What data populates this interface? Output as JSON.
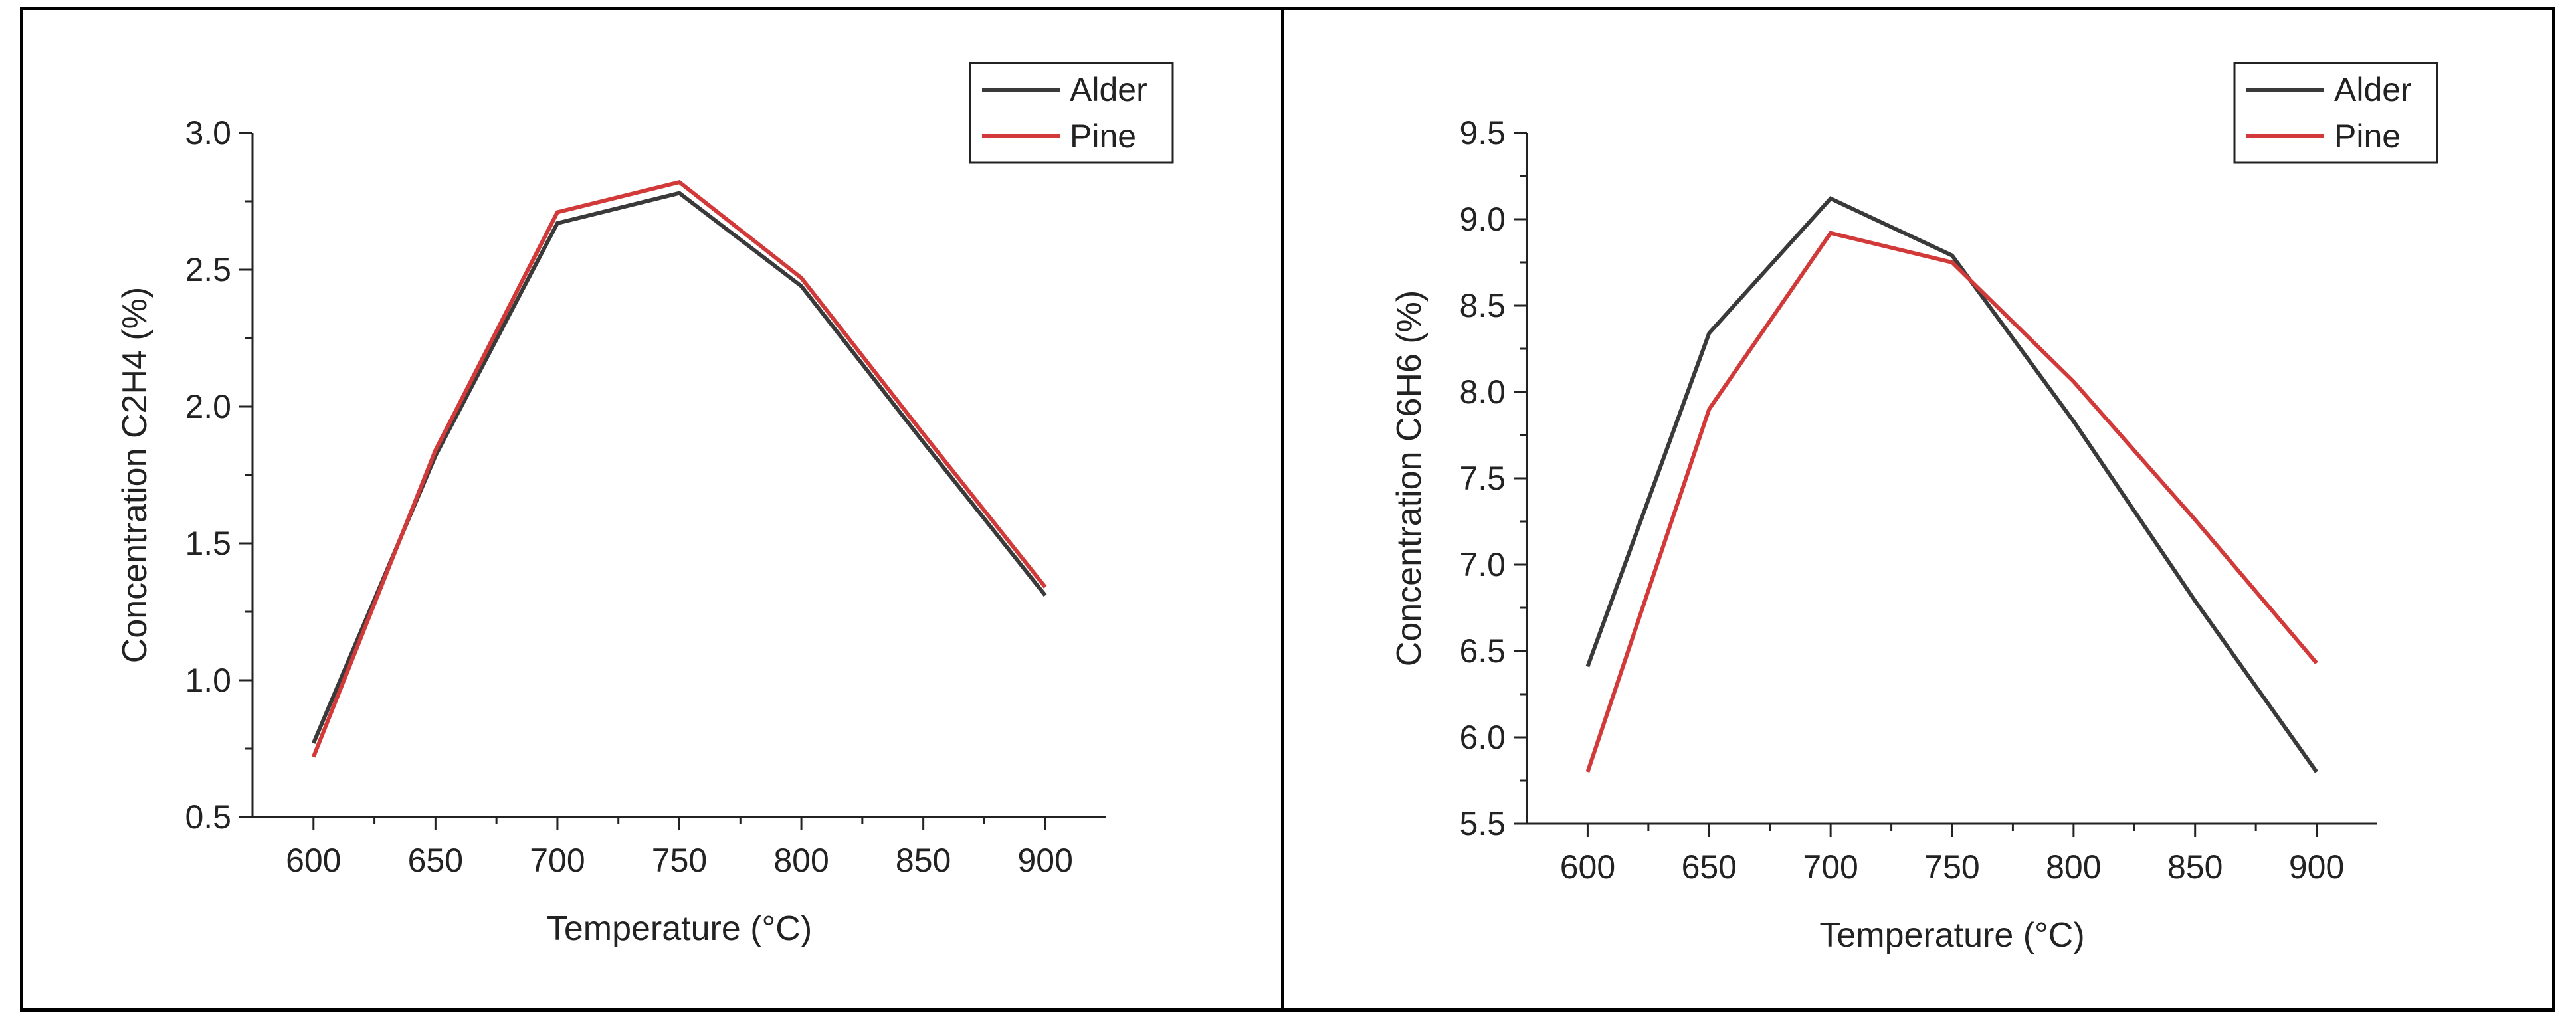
{
  "colors": {
    "alder": "#3a3a3a",
    "pine": "#d23a3a"
  },
  "chart_data": [
    {
      "type": "line",
      "title": "",
      "xlabel": "Temperature (°C)",
      "ylabel": "Concentration  C2H4 (%)",
      "x": [
        600,
        650,
        700,
        750,
        800,
        850,
        900
      ],
      "xlim": [
        575,
        925
      ],
      "ylim": [
        0.5,
        3.0
      ],
      "xticks": [
        "600",
        "650",
        "700",
        "750",
        "800",
        "850",
        "900"
      ],
      "yticks": [
        "0.5",
        "1.0",
        "1.5",
        "2.0",
        "2.5",
        "3.0"
      ],
      "legend": [
        "Alder",
        "Pine"
      ],
      "series": [
        {
          "name": "Alder",
          "values": [
            0.77,
            1.82,
            2.67,
            2.78,
            2.44,
            1.87,
            1.31
          ]
        },
        {
          "name": "Pine",
          "values": [
            0.72,
            1.84,
            2.71,
            2.82,
            2.47,
            1.9,
            1.34
          ]
        }
      ]
    },
    {
      "type": "line",
      "title": "",
      "xlabel": "Temperature (°C)",
      "ylabel": "Concentration  C6H6 (%)",
      "x": [
        600,
        650,
        700,
        750,
        800,
        850,
        900
      ],
      "xlim": [
        575,
        925
      ],
      "ylim": [
        5.5,
        9.5
      ],
      "xticks": [
        "600",
        "650",
        "700",
        "750",
        "800",
        "850",
        "900"
      ],
      "yticks": [
        "5.5",
        "6.0",
        "6.5",
        "7.0",
        "7.5",
        "8.0",
        "8.5",
        "9.0",
        "9.5"
      ],
      "legend": [
        "Alder",
        "Pine"
      ],
      "series": [
        {
          "name": "Alder",
          "values": [
            6.41,
            8.34,
            9.12,
            8.79,
            7.83,
            6.79,
            5.8
          ]
        },
        {
          "name": "Pine",
          "values": [
            5.8,
            7.9,
            8.92,
            8.75,
            8.06,
            7.26,
            6.43
          ]
        }
      ]
    }
  ]
}
